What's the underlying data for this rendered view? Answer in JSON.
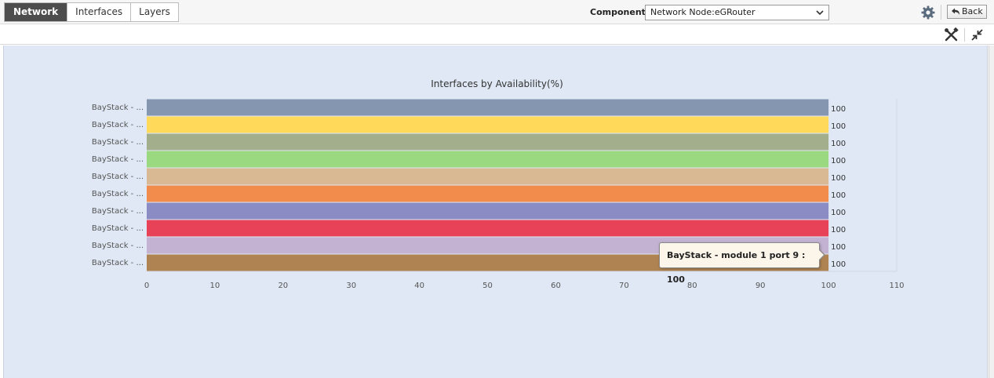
{
  "tabs": [
    {
      "label": "Network",
      "active": true
    },
    {
      "label": "Interfaces",
      "active": false
    },
    {
      "label": "Layers",
      "active": false
    }
  ],
  "component": {
    "label": "Component",
    "selected": "Network Node:eGRouter"
  },
  "back_label": "Back",
  "icons": {
    "settings": "gear-icon",
    "back": "back-arrow-icon",
    "tools": "tools-icon",
    "collapse": "collapse-icon",
    "dropdown": "chevron-down-icon"
  },
  "tooltip": {
    "text": "BayStack - module 1 port 9 : 100"
  },
  "chart_data": {
    "type": "bar",
    "orientation": "horizontal",
    "title": "Interfaces by Availability(%)",
    "xlabel": "",
    "ylabel": "",
    "xlim": [
      0,
      110
    ],
    "xticks": [
      0,
      10,
      20,
      30,
      40,
      50,
      60,
      70,
      80,
      90,
      100,
      110
    ],
    "categories": [
      "BayStack - ...",
      "BayStack - ...",
      "BayStack - ...",
      "BayStack - ...",
      "BayStack - ...",
      "BayStack - ...",
      "BayStack - ...",
      "BayStack - ...",
      "BayStack - ...",
      "BayStack - ..."
    ],
    "values": [
      100,
      100,
      100,
      100,
      100,
      100,
      100,
      100,
      100,
      100
    ],
    "data_labels": [
      "100",
      "100",
      "100",
      "100",
      "100",
      "100",
      "100",
      "100",
      "100",
      "100"
    ],
    "colors": [
      "#8496b0",
      "#ffd95a",
      "#a3ae8c",
      "#9bd980",
      "#d9b994",
      "#f28c4c",
      "#8c8cc4",
      "#e84258",
      "#c3b2d2",
      "#b08452"
    ],
    "grid": false
  }
}
